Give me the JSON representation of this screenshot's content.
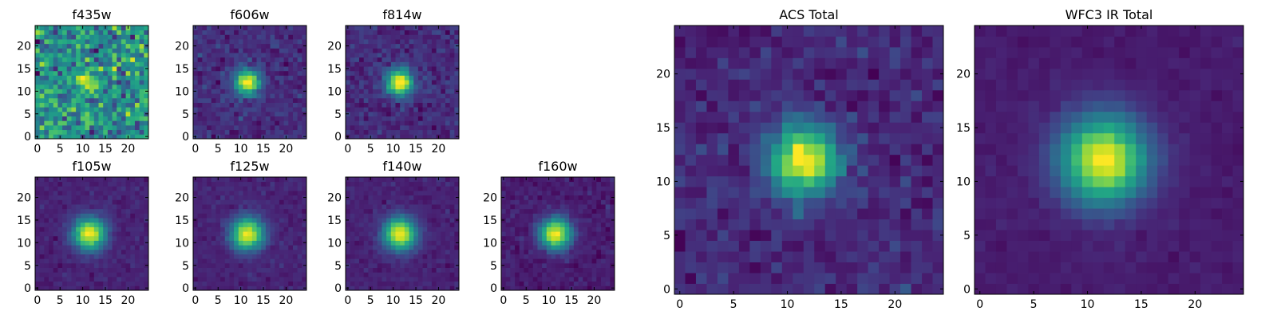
{
  "chart_data": {
    "type": "heatmap",
    "colormap": "viridis",
    "grid": false,
    "xlim": [
      -0.5,
      24.5
    ],
    "ylim": [
      -0.5,
      24.5
    ],
    "xticks": [
      "0",
      "5",
      "10",
      "15",
      "20"
    ],
    "yticks": [
      "0",
      "5",
      "10",
      "15",
      "20"
    ],
    "tick_values": [
      0,
      5,
      10,
      15,
      20
    ],
    "panels": [
      {
        "title": "f435w",
        "center": [
          11,
          12
        ],
        "sigma": 1.4,
        "background": 0.5,
        "amplitude": 0.55,
        "noise": 0.16
      },
      {
        "title": "f606w",
        "center": [
          11.5,
          12
        ],
        "sigma": 2.0,
        "background": 0.13,
        "amplitude": 0.9,
        "noise": 0.05
      },
      {
        "title": "f814w",
        "center": [
          11.5,
          12
        ],
        "sigma": 2.0,
        "background": 0.13,
        "amplitude": 0.9,
        "noise": 0.05
      },
      {
        "title": "f105w",
        "center": [
          11.5,
          12
        ],
        "sigma": 2.5,
        "background": 0.1,
        "amplitude": 0.9,
        "noise": 0.025
      },
      {
        "title": "f125w",
        "center": [
          11.5,
          12
        ],
        "sigma": 2.5,
        "background": 0.1,
        "amplitude": 0.9,
        "noise": 0.025
      },
      {
        "title": "f140w",
        "center": [
          11.5,
          12
        ],
        "sigma": 2.5,
        "background": 0.1,
        "amplitude": 0.9,
        "noise": 0.025
      },
      {
        "title": "f160w",
        "center": [
          11.5,
          12
        ],
        "sigma": 2.4,
        "background": 0.08,
        "amplitude": 0.92,
        "noise": 0.03
      },
      {
        "title": "ACS Total",
        "center": [
          11.5,
          12
        ],
        "sigma": 2.2,
        "background": 0.12,
        "amplitude": 0.9,
        "noise": 0.05
      },
      {
        "title": "WFC3 IR Total",
        "center": [
          11.5,
          12
        ],
        "sigma": 2.8,
        "background": 0.08,
        "amplitude": 0.92,
        "noise": 0.015
      }
    ]
  }
}
